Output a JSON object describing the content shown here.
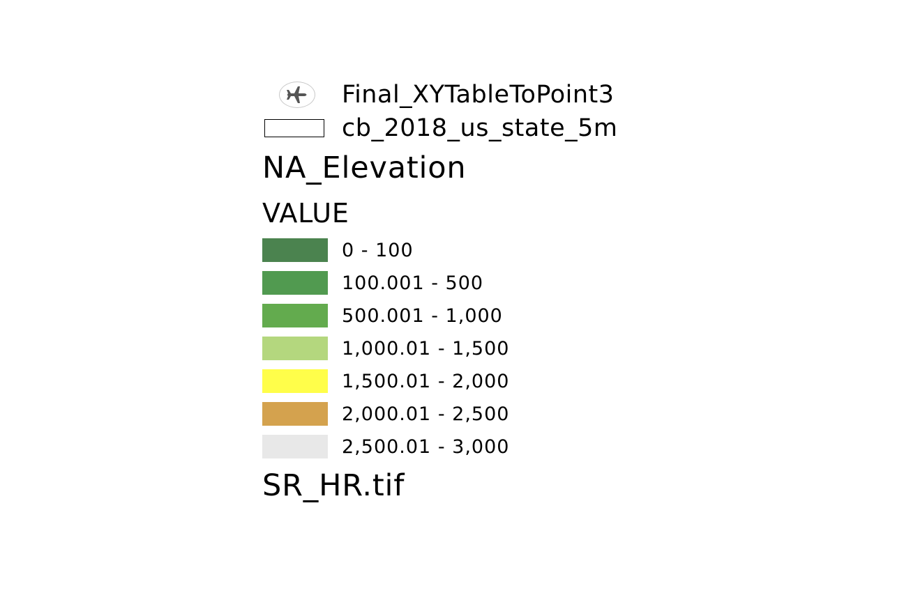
{
  "legend": {
    "point_layer": {
      "label": "Final_XYTableToPoint3",
      "icon": "airplane-icon",
      "icon_color": "#555555"
    },
    "polygon_layer": {
      "label": "cb_2018_us_state_5m",
      "outline_color": "#000000"
    },
    "raster_layer": {
      "title": "NA_Elevation",
      "field": "VALUE",
      "classes": [
        {
          "label": "0 - 100",
          "color": "#4b834f"
        },
        {
          "label": "100.001 - 500",
          "color": "#519a50"
        },
        {
          "label": "500.001 - 1,000",
          "color": "#63ab4e"
        },
        {
          "label": "1,000.01 - 1,500",
          "color": "#b4d77e"
        },
        {
          "label": "1,500.01 - 2,000",
          "color": "#fffe4a"
        },
        {
          "label": "2,000.01 - 2,500",
          "color": "#d4a24e"
        },
        {
          "label": "2,500.01 - 3,000",
          "color": "#e8e8e8"
        }
      ]
    },
    "hillshade_layer": {
      "title": "SR_HR.tif"
    }
  }
}
